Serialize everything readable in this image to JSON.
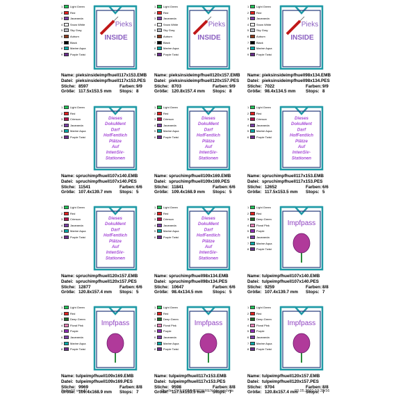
{
  "labels": {
    "name": "Name:",
    "datei": "Datei:",
    "stiche": "Stiche:",
    "farben": "Farben:",
    "groesse": "Größe:",
    "stops": "Stops:"
  },
  "palettes": {
    "pieks": [
      {
        "no": 1,
        "name": "Light Green",
        "color": "#22c35a"
      },
      {
        "no": 2,
        "name": "Red",
        "color": "#e0201e"
      },
      {
        "no": 3,
        "name": "Jacaranda",
        "color": "#7b3fa8"
      },
      {
        "no": 4,
        "name": "Snow White",
        "color": "#ffffff"
      },
      {
        "no": 5,
        "name": "Sky Gray",
        "color": "#b8bcc4"
      },
      {
        "no": 6,
        "name": "Auburn",
        "color": "#8b3a1e"
      },
      {
        "no": 7,
        "name": "Black",
        "color": "#000000"
      },
      {
        "no": 8,
        "name": "Marine Aqua",
        "color": "#0aa7a5"
      },
      {
        "no": 9,
        "name": "Purple Twist",
        "color": "#6a2d8c"
      }
    ],
    "spruch": [
      {
        "no": 1,
        "name": "Light Green",
        "color": "#22c35a"
      },
      {
        "no": 2,
        "name": "Red",
        "color": "#e0201e"
      },
      {
        "no": 3,
        "name": "Crimson",
        "color": "#b0124a"
      },
      {
        "no": 4,
        "name": "Jacaranda",
        "color": "#7b3fa8"
      },
      {
        "no": 5,
        "name": "Marine Aqua",
        "color": "#0aa7a5"
      },
      {
        "no": 6,
        "name": "Purple Twist",
        "color": "#6a2d8c"
      }
    ],
    "tulpe": [
      {
        "no": 1,
        "name": "Light Green",
        "color": "#22c35a"
      },
      {
        "no": 2,
        "name": "Red",
        "color": "#e0201e"
      },
      {
        "no": 3,
        "name": "Deep Green",
        "color": "#1f6b2c"
      },
      {
        "no": 4,
        "name": "Floral Pink",
        "color": "#e882b8"
      },
      {
        "no": 5,
        "name": "Purple",
        "color": "#8e2fb5"
      },
      {
        "no": 6,
        "name": "Jacaranda",
        "color": "#7b3fa8"
      },
      {
        "no": 7,
        "name": "Marine Aqua",
        "color": "#0aa7a5"
      },
      {
        "no": 8,
        "name": "Purple Twist",
        "color": "#6a2d8c"
      }
    ]
  },
  "designs": {
    "pieks": [
      "Pieks",
      "INSIDE"
    ],
    "spruch": [
      "Dieses",
      "DokuMent",
      "Darf",
      "HofFentlich",
      "Plätze",
      "Auf",
      "IntenSiv-",
      "Stationen"
    ],
    "tulpe": [
      "Impfpass"
    ]
  },
  "cells": [
    {
      "design": "pieks",
      "name": "pieksinsideimpfhuell117x153.EMB",
      "datei": "pieksinsideimpfhuell117x153.PES",
      "stiche": "8597",
      "farben": "9/9",
      "groesse": "117.5x153.5 mm",
      "stops": "8"
    },
    {
      "design": "pieks",
      "name": "pieksinsideimpfhuell120x157.EMB",
      "datei": "pieksinsideimpfhuell120x157.PES",
      "stiche": "8703",
      "farben": "9/9",
      "groesse": "120.8x157.4 mm",
      "stops": "8"
    },
    {
      "design": "pieks",
      "name": "pieksinsideimpfhuell98x134.EMB",
      "datei": "pieksinsideimpfhuell98x134.PES",
      "stiche": "7022",
      "farben": "9/9",
      "groesse": "98.4x134.5 mm",
      "stops": "8"
    },
    {
      "design": "spruch",
      "name": "spruchimpfhuell107x140.EMB",
      "datei": "spruchimpfhuell107x140.PES",
      "stiche": "11541",
      "farben": "6/6",
      "groesse": "107.4x139.7 mm",
      "stops": "5"
    },
    {
      "design": "spruch",
      "name": "spruchimpfhuell109x169.EMB",
      "datei": "spruchimpfhuell109x169.PES",
      "stiche": "11841",
      "farben": "6/6",
      "groesse": "109.4x168.9 mm",
      "stops": "5"
    },
    {
      "design": "spruch",
      "name": "spruchimpfhuell117x153.EMB",
      "datei": "spruchimpfhuell117x153.PES",
      "stiche": "12652",
      "farben": "6/6",
      "groesse": "117.5x153.5 mm",
      "stops": "5"
    },
    {
      "design": "spruch",
      "name": "spruchimpfhuell120x157.EMB",
      "datei": "spruchimpfhuell120x157.PES",
      "stiche": "12877",
      "farben": "6/6",
      "groesse": "120.8x157.4 mm",
      "stops": "5"
    },
    {
      "design": "spruch",
      "name": "spruchimpfhuell98x134.EMB",
      "datei": "spruchimpfhuell98x134.PES",
      "stiche": "10647",
      "farben": "6/6",
      "groesse": "98.4x134.5 mm",
      "stops": "5"
    },
    {
      "design": "tulpe",
      "name": "tulpeimpfhuell107x140.EMB",
      "datei": "tulpeimpfhuell107x140.PES",
      "stiche": "9259",
      "farben": "8/8",
      "groesse": "107.4x139.7 mm",
      "stops": "7"
    },
    {
      "design": "tulpe",
      "name": "tulpeimpfhuell109x169.EMB",
      "datei": "tulpeimpfhuell109x169.PES",
      "stiche": "9969",
      "farben": "8/8",
      "groesse": "109.4x168.9 mm",
      "stops": "7"
    },
    {
      "design": "tulpe",
      "name": "tulpeimpfhuell117x153.EMB",
      "datei": "tulpeimpfhuell117x153.PES",
      "stiche": "9598",
      "farben": "8/8",
      "groesse": "117.5x153.5 mm",
      "stops": "7"
    },
    {
      "design": "tulpe",
      "name": "tulpeimpfhuell120x157.EMB",
      "datei": "tulpeimpfhuell120x157.PES",
      "stiche": "9704",
      "farben": "8/8",
      "groesse": "120.8x157.4 mm",
      "stops": "7"
    }
  ],
  "footer": {
    "page": "Seite 10 von 11",
    "source": "Quelle: C:\\1 KOMVERTIEREN Verzeichnis",
    "date": "03.05.2021 12:32:56"
  }
}
